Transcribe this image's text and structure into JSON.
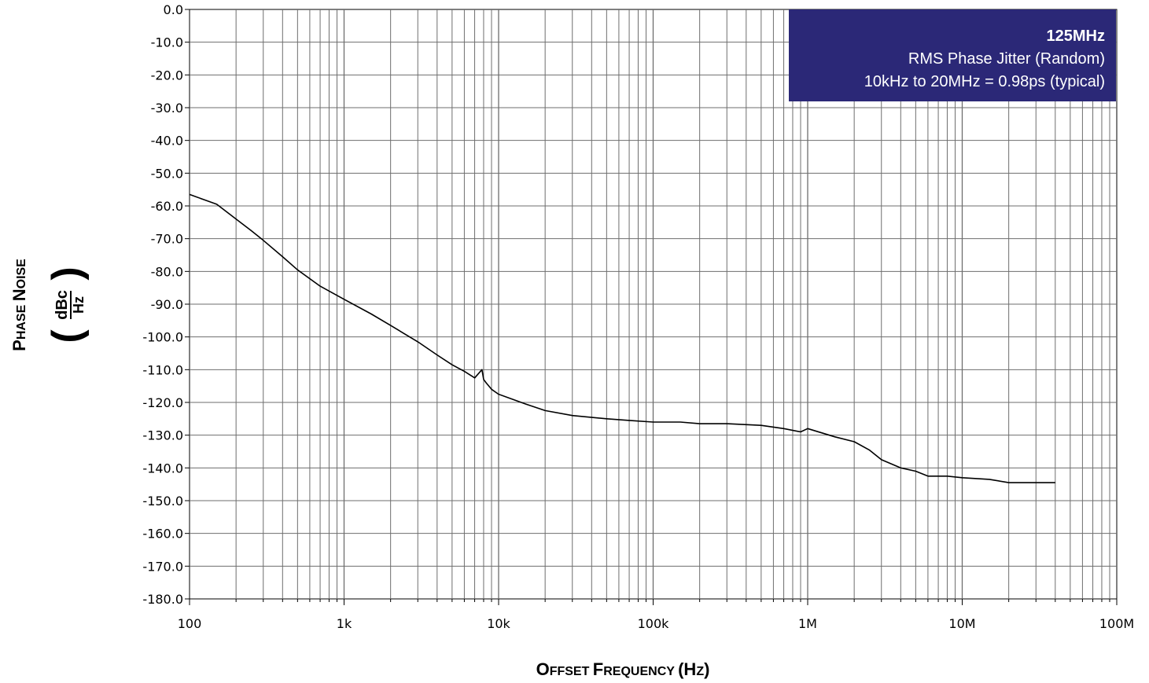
{
  "chart_data": {
    "type": "line",
    "title": "",
    "xlabel": {
      "first": "O",
      "rest": "FFSET ",
      "first2": "F",
      "rest2": "REQUENCY ",
      "paren_open": "(",
      "first3": "H",
      "rest3": "Z",
      "paren_close": ")"
    },
    "ylabel": {
      "first": "P",
      "rest": "HASE ",
      "first2": "N",
      "rest2": "OISE",
      "unit_num": "dBc",
      "unit_den": "Hz"
    },
    "x_scale": "log",
    "xlim": [
      100,
      100000000
    ],
    "ylim": [
      -180,
      0
    ],
    "grid": true,
    "x_tick_labels": [
      {
        "value": 100,
        "label": "100"
      },
      {
        "value": 1000,
        "label": "1k"
      },
      {
        "value": 10000,
        "label": "10k"
      },
      {
        "value": 100000,
        "label": "100k"
      },
      {
        "value": 1000000,
        "label": "1M"
      },
      {
        "value": 10000000,
        "label": "10M"
      },
      {
        "value": 100000000,
        "label": "100M"
      }
    ],
    "y_ticks": [
      0,
      -10,
      -20,
      -30,
      -40,
      -50,
      -60,
      -70,
      -80,
      -90,
      -100,
      -110,
      -120,
      -130,
      -140,
      -150,
      -160,
      -170,
      -180
    ],
    "y_tick_labels": [
      "0.0",
      "-10.0",
      "-20.0",
      "-30.0",
      "-40.0",
      "-50.0",
      "-60.0",
      "-70.0",
      "-80.0",
      "-90.0",
      "-100.0",
      "-110.0",
      "-120.0",
      "-130.0",
      "-140.0",
      "-150.0",
      "-160.0",
      "-170.0",
      "-180.0"
    ],
    "series": [
      {
        "color": "#000000",
        "x": [
          100,
          150,
          200,
          250,
          300,
          400,
          500,
          700,
          1000,
          1500,
          2000,
          3000,
          4000,
          5000,
          6000,
          7000,
          7800,
          8000,
          8300,
          9000,
          10000,
          15000,
          20000,
          30000,
          50000,
          70000,
          100000,
          150000,
          200000,
          300000,
          500000,
          700000,
          900000,
          1000000,
          1500000,
          2000000,
          2500000,
          3000000,
          4000000,
          5000000,
          6000000,
          8000000,
          10000000,
          15000000,
          20000000,
          30000000,
          40000000
        ],
        "y": [
          -56.5,
          -59.5,
          -64,
          -67.5,
          -70.5,
          -75.5,
          -79.5,
          -84.5,
          -88.5,
          -93,
          -96.5,
          -101.5,
          -105.5,
          -108.5,
          -110.5,
          -112.5,
          -110,
          -113,
          -114,
          -116,
          -117.5,
          -120.5,
          -122.5,
          -124,
          -125,
          -125.5,
          -126,
          -126,
          -126.5,
          -126.5,
          -127,
          -128,
          -129,
          -128,
          -130.5,
          -132,
          -134.5,
          -137.5,
          -140,
          -141,
          -142.5,
          -142.5,
          -143,
          -143.5,
          -144.5,
          -144.5,
          -144.5
        ]
      }
    ],
    "annotation": {
      "bg_color": "#2b2877",
      "title": "125MHz",
      "line1": "RMS Phase Jitter (Random)",
      "line2": "10kHz to 20MHz = 0.98ps (typical)"
    }
  }
}
